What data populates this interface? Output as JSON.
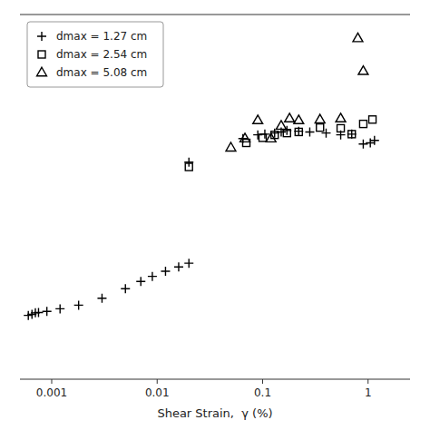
{
  "chart_data": {
    "type": "scatter",
    "xlabel": "Shear Strain,  γ (%)",
    "log": "x",
    "xlim": [
      0.0005,
      2.5
    ],
    "ylim": [
      0.0,
      1.0
    ],
    "xticks": [
      0.001,
      0.01,
      0.1,
      1
    ],
    "tick_labels": "x",
    "grid": false,
    "legend": "upper-left",
    "series": [
      {
        "name": "dmax = 1.27 cm",
        "color": "#000000",
        "marker": "plus",
        "x": [
          0.02,
          0.065,
          0.09,
          0.105,
          0.13,
          0.15,
          0.17,
          0.22,
          0.28,
          0.4,
          0.55,
          0.7,
          0.9,
          1.05,
          1.15
        ],
        "values": [
          0.595,
          0.66,
          0.67,
          0.672,
          0.675,
          0.678,
          0.682,
          0.68,
          0.678,
          0.675,
          0.67,
          0.672,
          0.645,
          0.648,
          0.655
        ]
      },
      {
        "name": "dmax = 2.54 cm",
        "color": "#000000",
        "marker": "square",
        "x": [
          0.02,
          0.07,
          0.1,
          0.13,
          0.17,
          0.22,
          0.35,
          0.55,
          0.7,
          0.9,
          1.1
        ],
        "values": [
          0.582,
          0.648,
          0.662,
          0.67,
          0.675,
          0.678,
          0.69,
          0.688,
          0.672,
          0.7,
          0.712
        ]
      },
      {
        "name": "dmax = 5.08 cm",
        "color": "#000000",
        "marker": "triangle",
        "x": [
          0.05,
          0.068,
          0.09,
          0.12,
          0.15,
          0.18,
          0.22,
          0.35,
          0.55,
          0.9
        ],
        "values": [
          0.635,
          0.66,
          0.71,
          0.66,
          0.695,
          0.715,
          0.71,
          0.712,
          0.715,
          0.845
        ]
      },
      {
        "color": "#000000",
        "marker": "triangle",
        "x": [
          0.8
        ],
        "values": [
          0.935
        ]
      },
      {
        "color": "#000000",
        "marker": "plus",
        "x": [
          0.0006,
          0.00065,
          0.0007,
          0.00075,
          0.0009,
          0.0012,
          0.0018,
          0.003,
          0.005,
          0.007,
          0.009,
          0.012,
          0.016,
          0.02
        ],
        "values": [
          0.175,
          0.178,
          0.182,
          0.183,
          0.186,
          0.193,
          0.203,
          0.222,
          0.248,
          0.268,
          0.282,
          0.296,
          0.308,
          0.318
        ]
      }
    ]
  }
}
